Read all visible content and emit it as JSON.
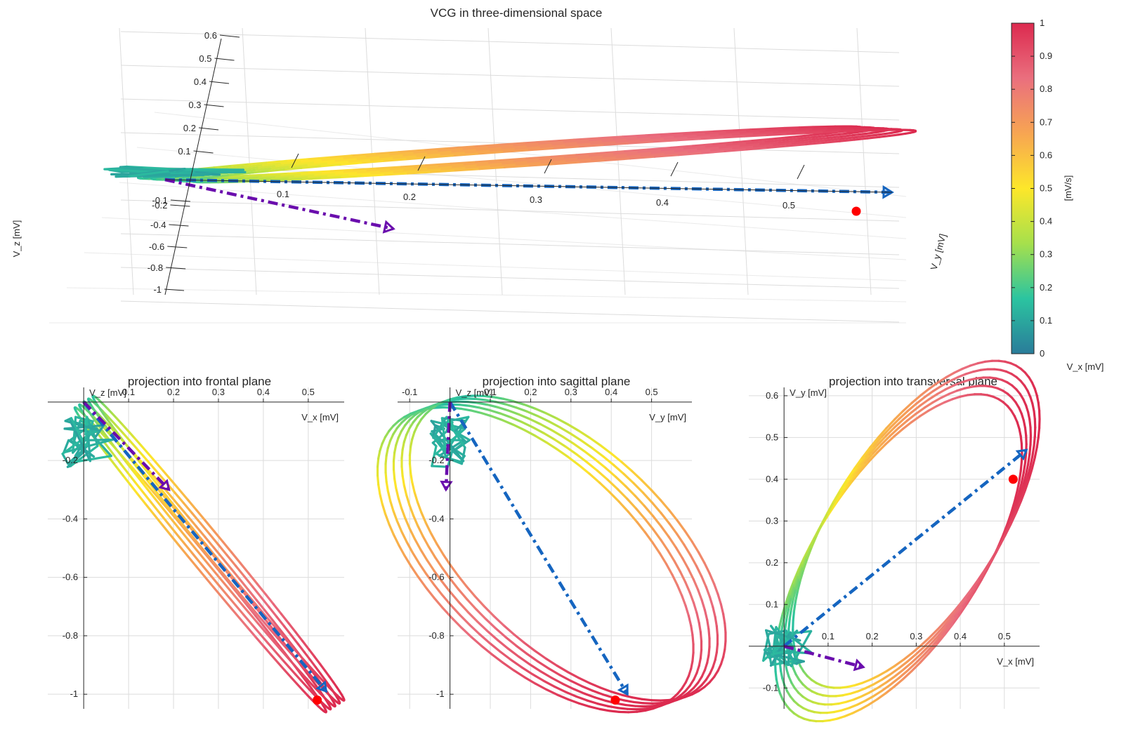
{
  "chart_data": [
    {
      "type": "line",
      "panel": "3d",
      "title": "VCG in three-dimensional space",
      "xlabel": "V_x [mV]",
      "ylabel": "V_y [mV]",
      "zlabel": "V_z [mV]",
      "x_ticks": [
        0.1,
        0.2,
        0.3,
        0.4,
        0.5
      ],
      "z_ticks_upper": [
        0.6,
        0.5,
        0.4,
        0.3,
        0.2,
        0.1
      ],
      "z_ticks_lower": [
        -0.1,
        -0.2,
        -0.4,
        -0.6,
        -0.8,
        -1
      ],
      "grid": true
    },
    {
      "type": "line",
      "panel": "frontal",
      "title": "projection into frontal plane",
      "xlabel": "V_x [mV]",
      "ylabel": "V_z [mV]",
      "xlim": [
        -0.08,
        0.58
      ],
      "ylim": [
        -1.05,
        0.05
      ],
      "x_ticks": [
        0.1,
        0.2,
        0.3,
        0.4,
        0.5
      ],
      "y_ticks": [
        -0.2,
        -0.4,
        -0.6,
        -0.8,
        -1
      ],
      "grid": true
    },
    {
      "type": "line",
      "panel": "sagittal",
      "title": "projection into sagittal plane",
      "xlabel": "V_y [mV]",
      "ylabel": "V_z [mV]",
      "xlim": [
        -0.13,
        0.6
      ],
      "ylim": [
        -1.05,
        0.05
      ],
      "x_ticks": [
        -0.1,
        0.1,
        0.2,
        0.3,
        0.4,
        0.5
      ],
      "y_ticks": [
        -0.2,
        -0.4,
        -0.6,
        -0.8,
        -1
      ],
      "grid": true
    },
    {
      "type": "line",
      "panel": "transversal",
      "title": "projection into transversal plane",
      "xlabel": "V_x [mV]",
      "ylabel": "V_y [mV]",
      "xlim": [
        -0.08,
        0.58
      ],
      "ylim": [
        -0.15,
        0.62
      ],
      "x_ticks": [
        0.1,
        0.2,
        0.3,
        0.4,
        0.5
      ],
      "y_ticks": [
        0.6,
        0.5,
        0.4,
        0.3,
        0.2,
        0.1,
        -0.1
      ],
      "grid": true
    }
  ],
  "colorbar": {
    "label": "[mV/s]",
    "range": [
      0,
      1
    ],
    "ticks": [
      0,
      0.1,
      0.2,
      0.3,
      0.4,
      0.5,
      0.6,
      0.7,
      0.8,
      0.9,
      1
    ]
  },
  "colors": {
    "main_vector": "#1565c0",
    "secondary_vector": "#6a0dad",
    "marker": "#ff0000",
    "colormap": [
      "#2a7c9a",
      "#2bc4a0",
      "#a6e04c",
      "#fde72a",
      "#f7a552",
      "#ea6f7e",
      "#dc2a4f"
    ]
  }
}
